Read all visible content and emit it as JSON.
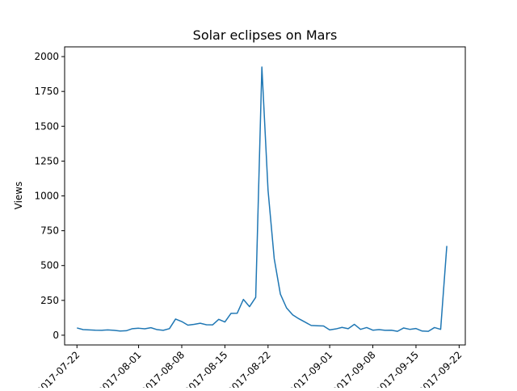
{
  "chart_data": {
    "type": "line",
    "title": "Solar eclipses on Mars",
    "xlabel": "",
    "ylabel": "Views",
    "x_start": "2017-07-22",
    "x_end": "2017-09-21",
    "xlim": [
      "2017-07-20",
      "2017-09-23"
    ],
    "ylim": [
      -70,
      2070
    ],
    "x_ticks": [
      "2017-07-22",
      "2017-08-01",
      "2017-08-08",
      "2017-08-15",
      "2017-08-22",
      "2017-09-01",
      "2017-09-08",
      "2017-09-15",
      "2017-09-22"
    ],
    "x_tick_labels": [
      "2017-07-22",
      "2017-08-01",
      "2017-08-08",
      "2017-08-15",
      "2017-08-22",
      "2017-09-01",
      "2017-09-08",
      "2017-09-15",
      "2017-09-22"
    ],
    "y_ticks": [
      0,
      250,
      500,
      750,
      1000,
      1250,
      1500,
      1750,
      2000
    ],
    "y_tick_labels": [
      "0",
      "250",
      "500",
      "750",
      "1000",
      "1250",
      "1500",
      "1750",
      "2000"
    ],
    "grid": false,
    "series": [
      {
        "color": "#1f77b4",
        "values": [
          52,
          40,
          38,
          36,
          35,
          38,
          35,
          30,
          32,
          47,
          50,
          46,
          54,
          40,
          35,
          47,
          116,
          98,
          72,
          78,
          86,
          75,
          74,
          114,
          95,
          157,
          158,
          257,
          205,
          272,
          1925,
          1040,
          550,
          295,
          196,
          146,
          118,
          94,
          70,
          68,
          66,
          38,
          45,
          56,
          47,
          78,
          42,
          55,
          36,
          40,
          35,
          36,
          28,
          52,
          42,
          48,
          30,
          28,
          55,
          42,
          641
        ]
      }
    ]
  }
}
